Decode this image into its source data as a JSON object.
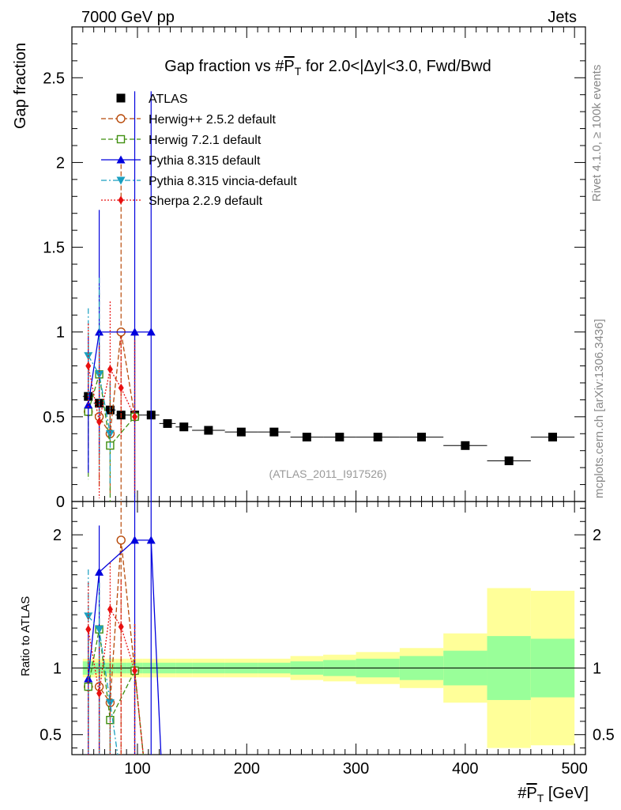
{
  "header": {
    "left": "7000 GeV pp",
    "right": "Jets"
  },
  "side_labels": {
    "rivet": "Rivet 4.1.0, ≥ 100k events",
    "mcplots": "mcplots.cern.ch [arXiv:1306.3436]"
  },
  "analysis_id": "(ATLAS_2011_I917526)",
  "chart_data": {
    "type": "scatter",
    "title": "Gap fraction vs #P̅T for 2.0<|Δy|<3.0, Fwd/Bwd",
    "title_parts": {
      "pre": "Gap fraction vs #",
      "p": "P",
      "t": "T",
      "post": " for 2.0<|Δy|<3.0, Fwd/Bwd"
    },
    "ylabel": "Gap fraction",
    "ratio_ylabel": "Ratio to ATLAS",
    "xlabel_parts": {
      "pre": "#",
      "p": "P",
      "t": "T",
      "post": " [GeV]"
    },
    "xlim": [
      40,
      510
    ],
    "ylim": [
      0,
      2.8
    ],
    "ratio_ylim": [
      0.35,
      2.25
    ],
    "xticks": [
      100,
      200,
      300,
      400,
      500
    ],
    "yticks": [
      0.5,
      1,
      1.5,
      2,
      2.5
    ],
    "ratio_yticks": [
      0.5,
      1,
      2
    ],
    "colors": {
      "ATLAS": "#000000",
      "Herwig++": "#b84a0a",
      "Herwig7": "#3f8f0f",
      "Pythia": "#0000dd",
      "Vincia": "#1a9fc0",
      "Sherpa": "#e81010",
      "band_outer": "#ffff99",
      "band_inner": "#99ff99"
    },
    "data": {
      "name": "ATLAS",
      "x": [
        55,
        65,
        75,
        85,
        97.5,
        112.5,
        127.5,
        142.5,
        165,
        195,
        225,
        255,
        285,
        320,
        360,
        400,
        440,
        480
      ],
      "y": [
        0.62,
        0.58,
        0.54,
        0.51,
        0.51,
        0.51,
        0.46,
        0.44,
        0.42,
        0.41,
        0.41,
        0.38,
        0.38,
        0.38,
        0.38,
        0.33,
        0.24,
        0.38
      ],
      "bins": [
        50,
        60,
        70,
        80,
        90,
        105,
        120,
        135,
        150,
        180,
        210,
        240,
        270,
        300,
        340,
        380,
        420,
        460,
        500
      ],
      "band_inner": [
        0.05,
        0.04,
        0.04,
        0.04,
        0.04,
        0.04,
        0.04,
        0.04,
        0.04,
        0.04,
        0.04,
        0.05,
        0.06,
        0.07,
        0.09,
        0.13,
        0.24,
        0.22
      ],
      "band_outer": [
        0.07,
        0.07,
        0.07,
        0.07,
        0.07,
        0.07,
        0.07,
        0.07,
        0.07,
        0.07,
        0.07,
        0.09,
        0.1,
        0.12,
        0.15,
        0.26,
        0.6,
        0.58
      ]
    },
    "series": [
      {
        "name": "Herwig++ 2.5.2 default",
        "key": "Herwig++",
        "style": "dashed",
        "marker": "circle-open",
        "x": [
          55,
          65,
          75,
          85,
          97.5
        ],
        "y": [
          0.53,
          0.5,
          0.4,
          1.0,
          0.5
        ],
        "err": [
          0.2,
          0.42,
          0.35,
          0.99,
          0.5
        ]
      },
      {
        "name": "Herwig 7.2.1 default",
        "key": "Herwig7",
        "style": "dashed",
        "marker": "square-open",
        "x": [
          55,
          65,
          75,
          97.5
        ],
        "y": [
          0.53,
          0.75,
          0.33,
          0.5
        ],
        "err": [
          0.4,
          0.48,
          0.35,
          0.48
        ]
      },
      {
        "name": "Pythia 8.315 default",
        "key": "Pythia",
        "style": "solid",
        "marker": "triangle-up",
        "x": [
          55,
          65,
          97.5,
          112.5
        ],
        "y": [
          0.57,
          1.0,
          1.0,
          1.0
        ],
        "err": [
          0.4,
          0.72,
          1.42,
          1.42
        ]
      },
      {
        "name": "Pythia 8.315 vincia-default",
        "key": "Vincia",
        "style": "dashdot",
        "marker": "triangle-down",
        "x": [
          55,
          65,
          75
        ],
        "y": [
          0.86,
          0.75,
          0.4
        ],
        "err": [
          0.28,
          0.57,
          0.3
        ]
      },
      {
        "name": "Sherpa 2.2.9 default",
        "key": "Sherpa",
        "style": "dotted",
        "marker": "diamond",
        "x": [
          55,
          65,
          75,
          85,
          97.5
        ],
        "y": [
          0.8,
          0.47,
          0.78,
          0.67,
          0.5
        ],
        "err": [
          0.25,
          0.45,
          0.4,
          0.3,
          0.45
        ]
      }
    ],
    "ratio_series": [
      {
        "key": "Herwig++",
        "style": "dashed",
        "marker": "circle-open",
        "x": [
          55,
          65,
          75,
          85,
          97.5
        ],
        "y": [
          0.86,
          0.86,
          0.74,
          1.96,
          0.98
        ]
      },
      {
        "key": "Herwig7",
        "style": "dashed",
        "marker": "square-open",
        "x": [
          55,
          65,
          75,
          97.5
        ],
        "y": [
          0.86,
          1.29,
          0.61,
          0.98
        ]
      },
      {
        "key": "Pythia",
        "style": "solid",
        "marker": "triangle-up",
        "x": [
          55,
          65,
          97.5,
          112.5
        ],
        "y": [
          0.92,
          1.72,
          1.96,
          1.96
        ]
      },
      {
        "key": "Vincia",
        "style": "dashdot",
        "marker": "triangle-down",
        "x": [
          55,
          65,
          75
        ],
        "y": [
          1.39,
          1.29,
          0.74
        ]
      },
      {
        "key": "Sherpa",
        "style": "dotted",
        "marker": "diamond",
        "x": [
          55,
          65,
          75,
          85,
          97.5
        ],
        "y": [
          1.29,
          0.81,
          1.44,
          1.31,
          0.98
        ]
      }
    ]
  }
}
